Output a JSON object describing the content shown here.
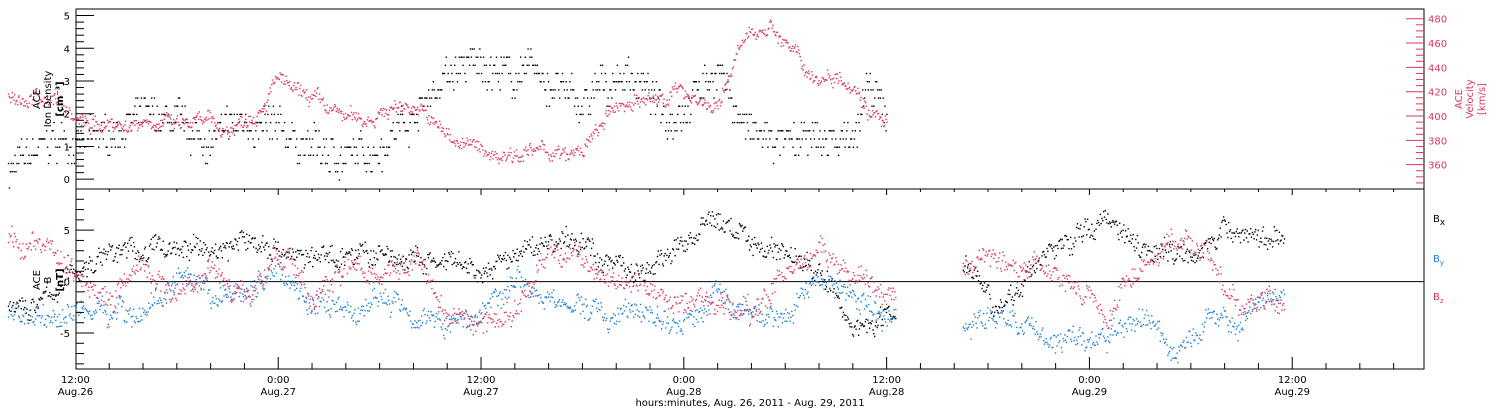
{
  "colors": {
    "black": "#000000",
    "red": "#e0365f",
    "blue": "#1a7fd6"
  },
  "chart_data": [
    {
      "type": "scatter",
      "panel": "top",
      "ylabel_lines": [
        "ACE",
        "Ion Density"
      ],
      "yunit": "[cm⁻³]",
      "y2label_lines": [
        "ACE",
        "Velocity"
      ],
      "y2unit": "[km/s]",
      "ylim": [
        -0.3,
        5.2
      ],
      "y2lim": [
        340,
        488
      ],
      "yticks": [
        "0",
        "1",
        "2",
        "3",
        "4",
        "5"
      ],
      "yticks_values": [
        0,
        1,
        2,
        3,
        4,
        5
      ],
      "y2ticks": [
        "360",
        "380",
        "400",
        "420",
        "440",
        "460",
        "480"
      ],
      "y2ticks_values": [
        360,
        380,
        400,
        420,
        440,
        460,
        480
      ],
      "xlim_hours": [
        0,
        81
      ],
      "data_end_hours": 52,
      "series": [
        {
          "color": "black",
          "axis": "left",
          "x": [
            0,
            1,
            2,
            3,
            4,
            5,
            6,
            7,
            8,
            9,
            10,
            11,
            12,
            13,
            14,
            15,
            16,
            17,
            18,
            19,
            20,
            21,
            22,
            23,
            24,
            25,
            26,
            27,
            28,
            29,
            30,
            31,
            32,
            33,
            34,
            35,
            36,
            37,
            38,
            39,
            40,
            41,
            42,
            43,
            44,
            45,
            46,
            47,
            48,
            49,
            50,
            51,
            52
          ],
          "y": [
            0.3,
            0.6,
            1.0,
            1.2,
            1.1,
            1.2,
            1.3,
            1.8,
            1.9,
            1.8,
            1.7,
            1.3,
            1.2,
            1.5,
            1.8,
            1.6,
            1.4,
            1.2,
            1.0,
            0.8,
            0.6,
            0.8,
            1.1,
            1.6,
            2.0,
            2.6,
            3.2,
            3.4,
            3.5,
            3.3,
            3.1,
            3.4,
            2.9,
            2.6,
            2.2,
            2.7,
            3.1,
            3.2,
            2.5,
            1.9,
            2.3,
            2.9,
            3.4,
            2.2,
            1.3,
            1.2,
            1.0,
            1.1,
            1.2,
            1.1,
            1.5,
            2.7,
            1.8
          ]
        },
        {
          "color": "red",
          "axis": "right",
          "x": [
            0,
            1,
            2,
            3,
            4,
            5,
            6,
            7,
            8,
            9,
            10,
            11,
            12,
            13,
            14,
            15,
            16,
            17,
            18,
            19,
            20,
            21,
            22,
            23,
            24,
            25,
            26,
            27,
            28,
            29,
            30,
            31,
            32,
            33,
            34,
            35,
            36,
            37,
            38,
            39,
            40,
            41,
            42,
            43,
            44,
            45,
            46,
            47,
            48,
            49,
            50,
            51,
            52
          ],
          "y": [
            418,
            412,
            416,
            414,
            396,
            392,
            396,
            392,
            398,
            396,
            392,
            394,
            395,
            388,
            398,
            410,
            432,
            418,
            415,
            405,
            400,
            398,
            402,
            408,
            410,
            396,
            385,
            378,
            372,
            368,
            372,
            370,
            372,
            366,
            372,
            390,
            408,
            414,
            411,
            418,
            422,
            413,
            404,
            450,
            468,
            476,
            460,
            442,
            430,
            436,
            428,
            404,
            392
          ]
        }
      ]
    },
    {
      "type": "scatter",
      "panel": "bottom",
      "ylabel_lines": [
        "ACE",
        "B"
      ],
      "yunit": "[nT]",
      "ylim": [
        -8.5,
        9
      ],
      "yticks": [
        "-5",
        "0",
        "5"
      ],
      "yticks_values": [
        -5,
        0,
        5
      ],
      "xlim_hours": [
        0,
        81
      ],
      "data_ranges_hours": [
        [
          0,
          52.5
        ],
        [
          56.5,
          75.5
        ]
      ],
      "series": [
        {
          "name": "Bx",
          "color": "black",
          "x": [
            0,
            2,
            4,
            6,
            8,
            10,
            12,
            14,
            16,
            18,
            20,
            22,
            24,
            26,
            28,
            30,
            32,
            34,
            36,
            38,
            40,
            42,
            44,
            46,
            48,
            50,
            52,
            57,
            59,
            61,
            63,
            65,
            67,
            69,
            71,
            73,
            75
          ],
          "y": [
            -3,
            -2,
            1,
            3,
            3,
            3.5,
            3,
            4,
            3.5,
            2,
            3,
            2.5,
            2,
            1.5,
            0.5,
            2.5,
            4,
            3.5,
            2,
            1,
            4,
            6,
            4,
            3,
            1,
            -4.5,
            -3,
            2,
            -3,
            2.5,
            4,
            6.5,
            4,
            3,
            4,
            5,
            4
          ]
        },
        {
          "name": "By",
          "color": "blue",
          "x": [
            0,
            2,
            4,
            6,
            8,
            10,
            12,
            14,
            16,
            18,
            20,
            22,
            24,
            26,
            28,
            30,
            32,
            34,
            36,
            38,
            40,
            42,
            44,
            46,
            48,
            50,
            52,
            57,
            59,
            61,
            63,
            65,
            67,
            69,
            71,
            73,
            75
          ],
          "y": [
            -2.5,
            -3.5,
            -3,
            -2.5,
            -3,
            0,
            -2,
            -1,
            1.5,
            -2,
            -3.5,
            -1.5,
            -2.5,
            -4,
            -3,
            1,
            -2,
            -2.5,
            -3.5,
            -3,
            -4.5,
            -1,
            -4,
            -3,
            1,
            -2,
            -3,
            -4,
            -3,
            -5,
            -5.5,
            -6,
            -3,
            -7,
            -4,
            -3.5,
            -1
          ]
        },
        {
          "name": "Bz",
          "color": "red",
          "x": [
            0,
            2,
            4,
            6,
            8,
            10,
            12,
            14,
            16,
            18,
            20,
            22,
            24,
            26,
            28,
            30,
            32,
            34,
            36,
            38,
            40,
            42,
            44,
            46,
            48,
            50,
            52,
            57,
            59,
            61,
            63,
            65,
            67,
            69,
            71,
            73,
            75
          ],
          "y": [
            3.5,
            3.5,
            1,
            -1,
            1,
            -1,
            1.5,
            -1.5,
            3.5,
            -2.5,
            2,
            1,
            3,
            -3,
            -4,
            -3,
            3,
            2,
            1,
            -1,
            -2,
            -2.5,
            -3.5,
            1,
            3,
            0.5,
            -1.5,
            2,
            2,
            1.5,
            1,
            -3.5,
            2,
            4,
            2.5,
            -3,
            -2
          ]
        }
      ]
    }
  ],
  "legend": {
    "bx": "B",
    "bx_sub": "x",
    "by": "B",
    "by_sub": "y",
    "bz": "B",
    "bz_sub": "z"
  },
  "xaxis": {
    "ticks": [
      {
        "hour": 4,
        "time": "12:00",
        "date": "Aug.26"
      },
      {
        "hour": 16,
        "time": "0:00",
        "date": "Aug.27"
      },
      {
        "hour": 28,
        "time": "12:00",
        "date": "Aug.27"
      },
      {
        "hour": 40,
        "time": "0:00",
        "date": "Aug.28"
      },
      {
        "hour": 52,
        "time": "12:00",
        "date": "Aug.28"
      },
      {
        "hour": 64,
        "time": "0:00",
        "date": "Aug.29"
      },
      {
        "hour": 76,
        "time": "12:00",
        "date": "Aug.29"
      }
    ],
    "caption": "hours:minutes, Aug. 26, 2011 - Aug. 29, 2011"
  }
}
